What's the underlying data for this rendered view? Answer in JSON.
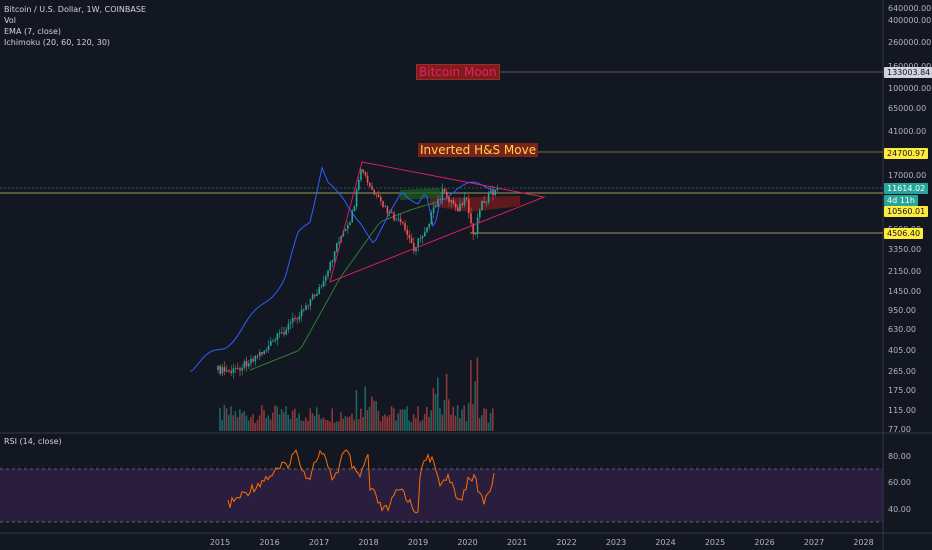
{
  "legend": {
    "symbol": "Bitcoin / U.S. Dollar, 1W, COINBASE",
    "volume": "Vol",
    "ema": "EMA (7, close)",
    "ichimoku": "Ichimoku (20, 60, 120, 30)",
    "rsi": "RSI (14, close)"
  },
  "annotations": {
    "target_top": "Bitcoin Moon",
    "inverted_hs": "Inverted H&S Move"
  },
  "price_labels": {
    "target": "133003.84",
    "hs_target": "24700.97",
    "current": "11614.02",
    "countdown": "4d 11h",
    "neckline": "10560.01",
    "support": "4506.40"
  },
  "price_axis": [
    "640000.00",
    "400000.00",
    "260000.00",
    "160000.00",
    "100000.00",
    "65000.00",
    "41000.00",
    "17000.00",
    "5600.00",
    "3350.00",
    "2150.00",
    "1450.00",
    "950.00",
    "630.00",
    "405.00",
    "265.00",
    "175.00",
    "115.00",
    "77.00"
  ],
  "rsi_axis": [
    "80.00",
    "60.00",
    "40.00"
  ],
  "year_axis": [
    "2015",
    "2016",
    "2017",
    "2018",
    "2019",
    "2020",
    "2021",
    "2022",
    "2023",
    "2024",
    "2025",
    "2026",
    "2027",
    "2028"
  ],
  "colors": {
    "background": "#131722",
    "up": "#26a69a",
    "down": "#ef5350",
    "ema": "#2962ff",
    "rsi": "#ff6d00",
    "rsi_band": "#2a1e3f",
    "triangle": "#e91e63",
    "hline_yellow": "#c8c96a",
    "cloud_green": "#1b5e20",
    "cloud_red": "#7f1d1d"
  }
}
